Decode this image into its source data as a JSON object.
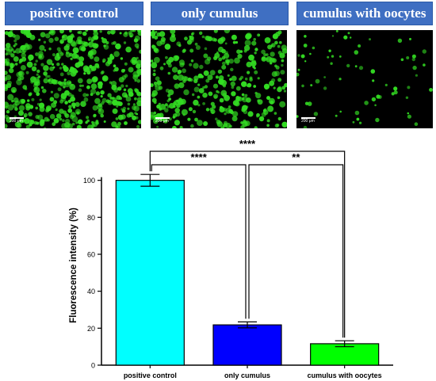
{
  "panels": [
    {
      "label": "positive control",
      "scale_label": "200 μm"
    },
    {
      "label": "only cumulus",
      "scale_label": "200 μm"
    },
    {
      "label": "cumulus with oocytes",
      "scale_label": "200 μm"
    }
  ],
  "colors": {
    "header_bg": "#3f6fc2",
    "fluorescence": "#33dd22"
  },
  "chart_data": {
    "type": "bar",
    "categories": [
      "positive control",
      "only cumulus",
      "cumulus with oocytes"
    ],
    "values": [
      100,
      21.8,
      11.6
    ],
    "errors": [
      3.2,
      1.6,
      1.6
    ],
    "colors": [
      "#00ffff",
      "#0000ff",
      "#00ff00"
    ],
    "ylabel": "Fluorescence intensity (%)",
    "ylim": [
      0,
      120
    ],
    "yticks": [
      0,
      20,
      40,
      60,
      80,
      100
    ],
    "significance": [
      {
        "from": 0,
        "to": 2,
        "label": "****"
      },
      {
        "from": 0,
        "to": 1,
        "label": "****"
      },
      {
        "from": 1,
        "to": 2,
        "label": "**"
      }
    ]
  }
}
